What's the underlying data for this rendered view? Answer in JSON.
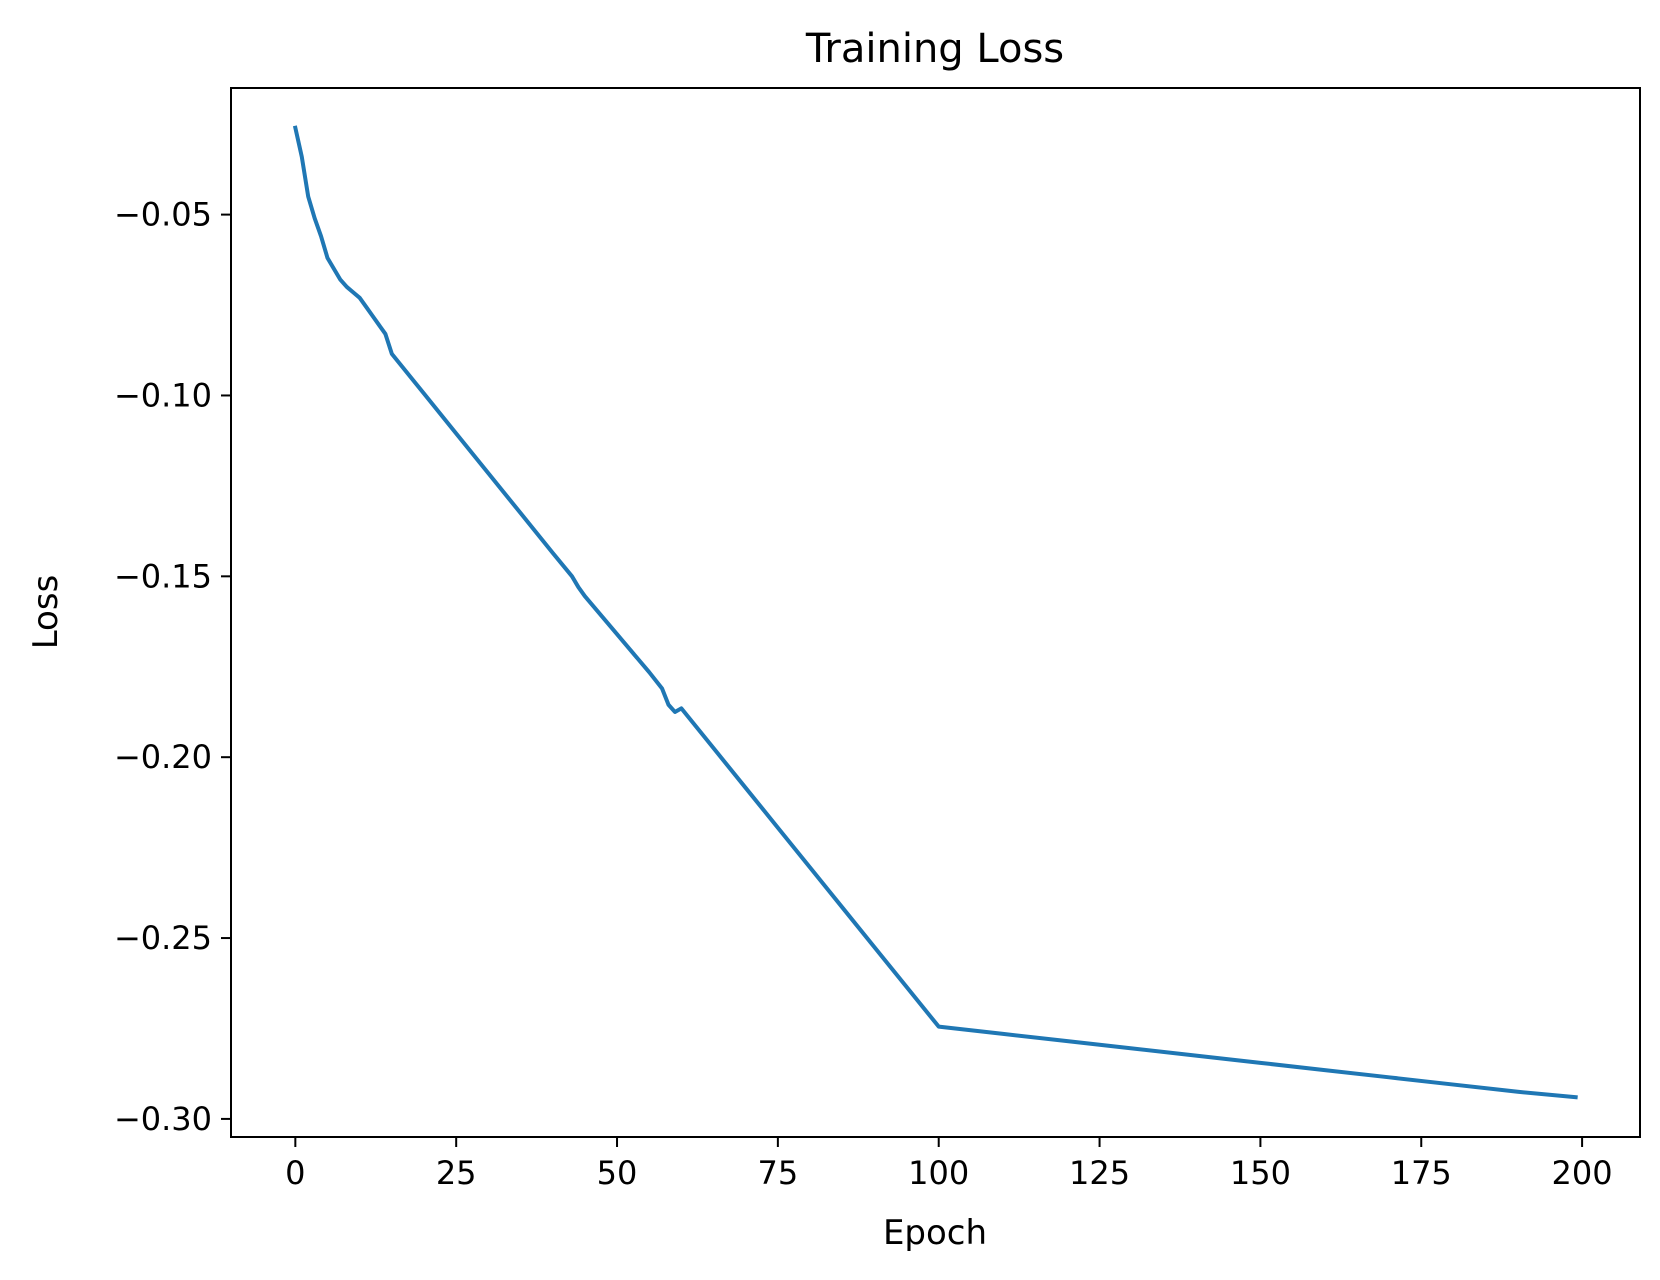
{
  "chart_data": {
    "type": "line",
    "title": "Training Loss",
    "xlabel": "Epoch",
    "ylabel": "Loss",
    "xlim": [
      -10,
      209
    ],
    "ylim": [
      -0.305,
      -0.015
    ],
    "xticks": [
      0,
      25,
      50,
      75,
      100,
      125,
      150,
      175,
      200
    ],
    "xtick_labels": [
      "0",
      "25",
      "50",
      "75",
      "100",
      "125",
      "150",
      "175",
      "200"
    ],
    "yticks": [
      -0.05,
      -0.1,
      -0.15,
      -0.2,
      -0.25,
      -0.3
    ],
    "ytick_labels": [
      "−0.05",
      "−0.10",
      "−0.15",
      "−0.20",
      "−0.25",
      "−0.30"
    ],
    "grid": false,
    "line_color": "#1f77b4",
    "series": [
      {
        "x": [
          0,
          1,
          2,
          3,
          4,
          5,
          6,
          7,
          8,
          9,
          10,
          11,
          12,
          13,
          14,
          15,
          20,
          25,
          30,
          35,
          40,
          43,
          44,
          45,
          50,
          55,
          57,
          58,
          59,
          60,
          65,
          70,
          75,
          80,
          85,
          90,
          95,
          100,
          110,
          120,
          130,
          140,
          150,
          160,
          170,
          180,
          190,
          199
        ],
        "y": [
          -0.026,
          -0.034,
          -0.045,
          -0.051,
          -0.056,
          -0.062,
          -0.065,
          -0.068,
          -0.07,
          -0.0715,
          -0.073,
          -0.0755,
          -0.078,
          -0.0805,
          -0.083,
          -0.0885,
          -0.0995,
          -0.1105,
          -0.1215,
          -0.1325,
          -0.1435,
          -0.15,
          -0.153,
          -0.1555,
          -0.166,
          -0.1765,
          -0.181,
          -0.1855,
          -0.1875,
          -0.1865,
          -0.1975,
          -0.2085,
          -0.2195,
          -0.2305,
          -0.2415,
          -0.2525,
          -0.2635,
          -0.2745,
          -0.2765,
          -0.2785,
          -0.2805,
          -0.2825,
          -0.2845,
          -0.2865,
          -0.2885,
          -0.2905,
          -0.2925,
          -0.294
        ]
      }
    ]
  }
}
